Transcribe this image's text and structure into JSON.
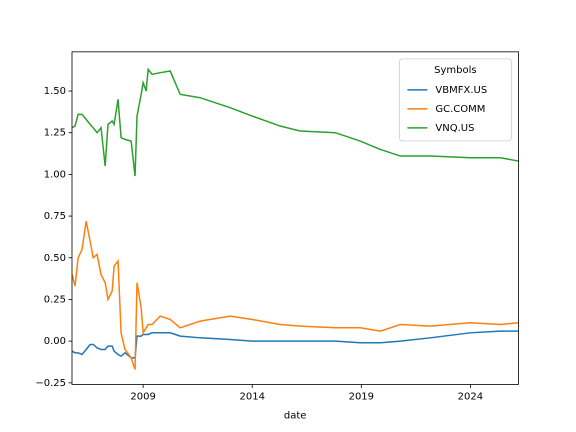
{
  "chart_data": {
    "type": "line",
    "x_label": "date",
    "legend_title": "Symbols",
    "legend": "upper right",
    "grid": false,
    "x": [
      2005.74,
      2005.88,
      2006.02,
      2006.2,
      2006.39,
      2006.57,
      2006.71,
      2006.89,
      2007.07,
      2007.26,
      2007.39,
      2007.58,
      2007.67,
      2007.85,
      2007.99,
      2008.17,
      2008.45,
      2008.63,
      2008.72,
      2008.91,
      2009.0,
      2009.14,
      2009.23,
      2009.41,
      2009.78,
      2010.24,
      2010.7,
      2011.61,
      2012.99,
      2014.0,
      2015.28,
      2016.2,
      2017.81,
      2018.95,
      2019.87,
      2020.79,
      2022.17,
      2024.0,
      2025.38,
      2026.2
    ],
    "series": [
      {
        "name": "VBMFX.US",
        "color": "#1f77b4",
        "values": [
          -0.06,
          -0.07,
          -0.07,
          -0.08,
          -0.05,
          -0.02,
          -0.02,
          -0.04,
          -0.05,
          -0.05,
          -0.03,
          -0.03,
          -0.06,
          -0.08,
          -0.09,
          -0.07,
          -0.1,
          -0.1,
          0.03,
          0.03,
          0.04,
          0.04,
          0.04,
          0.05,
          0.05,
          0.05,
          0.03,
          0.02,
          0.01,
          0.0,
          0.0,
          0.0,
          0.0,
          -0.01,
          -0.01,
          0.0,
          0.02,
          0.05,
          0.06,
          0.06
        ]
      },
      {
        "name": "GC.COMM",
        "color": "#ff7f0e",
        "values": [
          0.4,
          0.33,
          0.5,
          0.55,
          0.72,
          0.6,
          0.5,
          0.52,
          0.4,
          0.35,
          0.25,
          0.3,
          0.45,
          0.48,
          0.05,
          -0.05,
          -0.1,
          -0.17,
          0.35,
          0.2,
          0.05,
          0.08,
          0.1,
          0.1,
          0.15,
          0.13,
          0.08,
          0.12,
          0.15,
          0.13,
          0.1,
          0.09,
          0.08,
          0.08,
          0.06,
          0.1,
          0.09,
          0.11,
          0.1,
          0.11
        ]
      },
      {
        "name": "VNQ.US",
        "color": "#2ca02c",
        "values": [
          1.28,
          1.29,
          1.36,
          1.36,
          1.33,
          1.3,
          1.28,
          1.25,
          1.28,
          1.05,
          1.3,
          1.32,
          1.3,
          1.45,
          1.22,
          1.21,
          1.2,
          0.99,
          1.35,
          1.48,
          1.55,
          1.5,
          1.63,
          1.6,
          1.61,
          1.62,
          1.48,
          1.46,
          1.4,
          1.35,
          1.29,
          1.26,
          1.25,
          1.2,
          1.15,
          1.11,
          1.11,
          1.1,
          1.1,
          1.08
        ]
      }
    ],
    "xlim": [
      2005.74,
      2026.2
    ],
    "xticks": [
      2009,
      2014,
      2019,
      2024
    ],
    "ylim": [
      -0.26,
      1.735
    ],
    "yticks": [
      {
        "value": -0.25,
        "label": "−0.25"
      },
      {
        "value": 0,
        "label": "0.00"
      },
      {
        "value": 0.25,
        "label": "0.25"
      },
      {
        "value": 0.5,
        "label": "0.50"
      },
      {
        "value": 0.75,
        "label": "0.75"
      },
      {
        "value": 1,
        "label": "1.00"
      },
      {
        "value": 1.25,
        "label": "1.25"
      },
      {
        "value": 1.5,
        "label": "1.50"
      }
    ]
  }
}
